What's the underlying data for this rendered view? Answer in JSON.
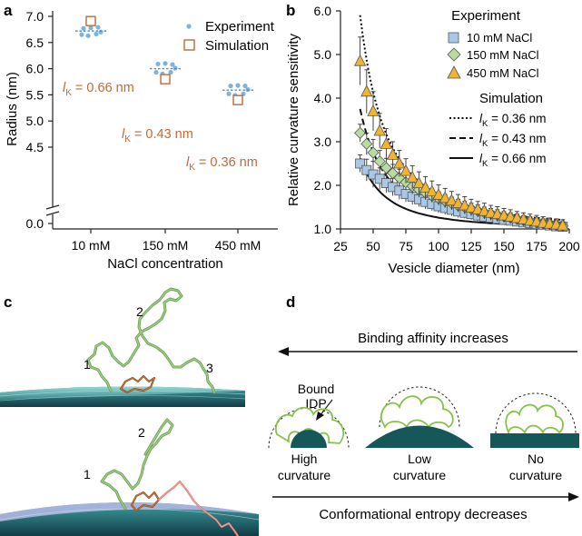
{
  "figure": {
    "panels": [
      "a",
      "b",
      "c",
      "d"
    ]
  },
  "panel_a": {
    "chart_data": {
      "type": "scatter",
      "categories": [
        "10 mM",
        "150 mM",
        "450 mM"
      ],
      "xlabel": "NaCl concentration",
      "ylabel": "Radius (nm)",
      "ylim": [
        4.25,
        7.0
      ],
      "yticks": [
        "0.0",
        "4.5",
        "5.0",
        "5.5",
        "6.0",
        "6.5",
        "7.0"
      ],
      "axis_break": "between 0.0 and 4.5",
      "legend": [
        "Experiment",
        "Simulation"
      ],
      "series": [
        {
          "name": "Experiment",
          "marker": "dot",
          "color": "#7fb3dc",
          "points": [
            [
              6.77,
              6.78,
              6.79,
              6.7,
              6.66,
              6.63,
              6.65
            ],
            [
              6.09,
              6.1,
              6.08,
              6.01,
              5.93,
              5.9,
              5.93
            ],
            [
              5.67,
              5.68,
              5.67,
              5.6,
              5.52,
              5.49,
              5.52
            ]
          ]
        },
        {
          "name": "Experiment mean",
          "marker": "dashed-line",
          "color": "#4a90d0",
          "values": [
            6.72,
            6.0,
            5.59
          ]
        },
        {
          "name": "Simulation",
          "marker": "open-square",
          "color": "#c06a3a",
          "values": [
            6.91,
            5.8,
            5.4
          ]
        }
      ],
      "annotations": [
        {
          "l": "l",
          "sub": "K",
          "rest": " = 0.66 nm"
        },
        {
          "l": "l",
          "sub": "K",
          "rest": " = 0.43 nm"
        },
        {
          "l": "l",
          "sub": "K",
          "rest": " = 0.36 nm"
        }
      ]
    }
  },
  "panel_b": {
    "chart_data": {
      "type": "scatter",
      "xlabel": "Vesicle diameter (nm)",
      "ylabel": "Relative curvature sensitivity",
      "xlim": [
        25,
        200
      ],
      "ylim": [
        1.0,
        6.0
      ],
      "xticks": [
        "25",
        "50",
        "75",
        "100",
        "125",
        "150",
        "175",
        "200"
      ],
      "yticks": [
        "1.0",
        "2.0",
        "3.0",
        "4.0",
        "5.0",
        "6.0"
      ],
      "legend_experiment_title": "Experiment",
      "legend_simulation_title": "Simulation",
      "x": [
        40,
        45,
        50,
        55,
        60,
        65,
        70,
        75,
        80,
        85,
        90,
        95,
        100,
        105,
        110,
        115,
        120,
        125,
        130,
        135,
        140,
        145,
        150,
        155,
        160,
        165,
        170,
        175,
        180,
        185,
        190,
        195
      ],
      "series": [
        {
          "name": "10 mM NaCl",
          "marker": "square",
          "color": "#a9c8e8",
          "values": [
            2.5,
            2.35,
            2.25,
            2.15,
            2.05,
            1.96,
            1.88,
            1.8,
            1.74,
            1.68,
            1.62,
            1.57,
            1.52,
            1.48,
            1.44,
            1.4,
            1.37,
            1.34,
            1.31,
            1.28,
            1.26,
            1.23,
            1.21,
            1.19,
            1.17,
            1.15,
            1.13,
            1.11,
            1.1,
            1.08,
            1.06,
            1.05
          ]
        },
        {
          "name": "150 mM NaCl",
          "marker": "diamond",
          "color": "#b8dba0",
          "values": [
            3.2,
            2.95,
            2.75,
            2.55,
            2.4,
            2.28,
            2.17,
            2.07,
            1.98,
            1.9,
            1.83,
            1.76,
            1.7,
            1.64,
            1.59,
            1.54,
            1.5,
            1.46,
            1.42,
            1.38,
            1.35,
            1.32,
            1.29,
            1.26,
            1.23,
            1.2,
            1.18,
            1.15,
            1.13,
            1.11,
            1.09,
            1.07
          ]
        },
        {
          "name": "450 mM NaCl",
          "marker": "triangle",
          "color": "#f2b330",
          "values": [
            4.85,
            4.15,
            3.7,
            3.25,
            2.95,
            2.7,
            2.5,
            2.33,
            2.18,
            2.05,
            1.95,
            1.86,
            1.78,
            1.71,
            1.65,
            1.59,
            1.54,
            1.49,
            1.45,
            1.41,
            1.37,
            1.34,
            1.31,
            1.28,
            1.25,
            1.22,
            1.19,
            1.17,
            1.14,
            1.12,
            1.1,
            1.08
          ]
        }
      ],
      "error": [
        0.2,
        0.25,
        0.3,
        0.25,
        0.22,
        0.2,
        0.2,
        0.18,
        0.18,
        0.17,
        0.16,
        0.15,
        0.15,
        0.15,
        0.14,
        0.14,
        0.13,
        0.13,
        0.13,
        0.12,
        0.12,
        0.12,
        0.11,
        0.11,
        0.11,
        0.1,
        0.1,
        0.1,
        0.1,
        0.1,
        0.1,
        0.1
      ],
      "error_450": [
        0.55,
        0.5,
        0.45,
        0.4,
        0.35,
        0.3,
        0.3,
        0.28,
        0.27,
        0.26,
        0.25,
        0.24,
        0.23,
        0.22,
        0.21,
        0.2,
        0.2,
        0.19,
        0.18,
        0.18,
        0.17,
        0.17,
        0.16,
        0.16,
        0.15,
        0.15,
        0.15,
        0.14,
        0.14,
        0.13,
        0.13,
        0.13
      ],
      "simulation": [
        {
          "label": {
            "l": "l",
            "sub": "K",
            "rest": " = 0.36 nm"
          },
          "style": "dotted",
          "A": 4.9
        },
        {
          "label": {
            "l": "l",
            "sub": "K",
            "rest": " = 0.43 nm"
          },
          "style": "dashed",
          "A": 2.75
        },
        {
          "label": {
            "l": "l",
            "sub": "K",
            "rest": " = 0.66 nm"
          },
          "style": "solid",
          "A": 1.62
        }
      ]
    }
  },
  "panel_c": {
    "top_labels": [
      "1",
      "2",
      "3"
    ],
    "bottom_labels": [
      "1",
      "2"
    ]
  },
  "panel_d": {
    "top_arrow": "Binding affinity increases",
    "bottom_arrow": "Conformational entropy decreases",
    "bound_label": [
      "Bound",
      "IDP"
    ],
    "cases": [
      {
        "line1": "High",
        "line2": "curvature"
      },
      {
        "line1": "Low",
        "line2": "curvature"
      },
      {
        "line1": "No",
        "line2": "curvature"
      }
    ]
  }
}
